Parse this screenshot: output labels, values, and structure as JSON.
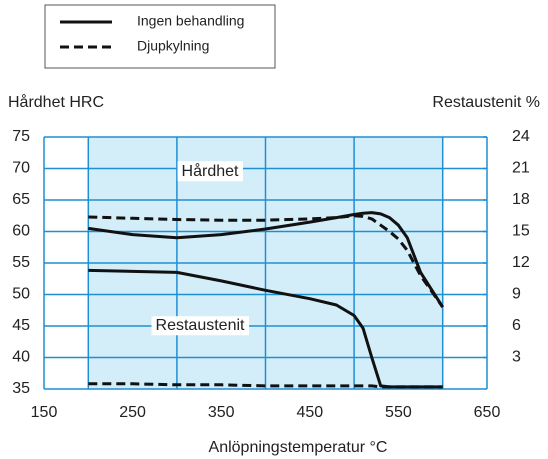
{
  "chart_data": {
    "type": "line",
    "y_label": "Hårdhet HRC",
    "y2_label": "Restaustenit  %",
    "x_label": "Anlöpningstemperatur  °C",
    "annotations": [
      "Hårdhet",
      "Restaustenit"
    ],
    "xlim": [
      150,
      650
    ],
    "xticks": [
      150,
      250,
      350,
      450,
      550,
      650
    ],
    "ylim": [
      35,
      75
    ],
    "yticks": [
      35,
      40,
      45,
      50,
      55,
      60,
      65,
      70,
      75
    ],
    "y2lim": [
      0,
      24
    ],
    "y2ticks": [
      3,
      6,
      9,
      12,
      15,
      18,
      21,
      24
    ],
    "grid": true,
    "background": "#d3eef9",
    "grid_color": "#1f8fd4",
    "x": [
      200,
      250,
      300,
      350,
      400,
      450,
      480,
      500,
      510,
      520,
      530,
      540,
      550,
      560,
      575,
      600
    ],
    "series": [
      {
        "name": "Ingen behandling",
        "color": "#111111",
        "dash": "solid",
        "values": [
          60.5,
          59.5,
          59,
          59.5,
          60.4,
          61.5,
          62.2,
          62.7,
          62.9,
          63,
          62.8,
          62.2,
          61,
          59,
          53.5,
          48
        ],
        "y2_values": [
          11.3,
          11.2,
          11.1,
          10.3,
          9.4,
          8.6,
          8.0,
          7.0,
          5.8,
          3.0,
          0.3,
          0.2,
          0.2,
          0.2,
          0.2,
          0.2
        ]
      },
      {
        "name": "Djupkylning",
        "color": "#111111",
        "dash": "dashed",
        "values": [
          62.3,
          62.1,
          61.9,
          61.8,
          61.8,
          62,
          62.2,
          62.5,
          62.4,
          62,
          61,
          60,
          58.8,
          57,
          53,
          48
        ],
        "y2_values": [
          0.5,
          0.5,
          0.4,
          0.4,
          0.3,
          0.3,
          0.3,
          0.3,
          0.3,
          0.3,
          0.2,
          0.2,
          0.2,
          0.2,
          0.2,
          0.2
        ]
      }
    ]
  }
}
